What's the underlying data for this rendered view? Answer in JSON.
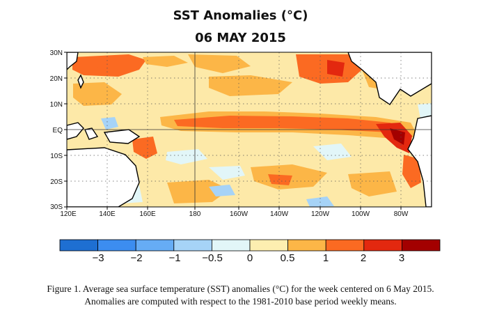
{
  "map": {
    "title": "SST Anomalies (°C)",
    "date": "06 MAY 2015",
    "lat_labels": [
      "30N",
      "20N",
      "10N",
      "EQ",
      "10S",
      "20S",
      "30S"
    ],
    "lon_labels": [
      "120E",
      "140E",
      "160E",
      "180",
      "160W",
      "140W",
      "120W",
      "100W",
      "80W"
    ],
    "colorbar": {
      "colors": [
        "#1e6fd2",
        "#3c8df0",
        "#66acf5",
        "#a6d3f7",
        "#e2f6f8",
        "#fdeeb0",
        "#fcb647",
        "#fb6a22",
        "#e3280f",
        "#a30000"
      ],
      "tick_labels": [
        "−3",
        "−2",
        "−1",
        "−0.5",
        "0",
        "0.5",
        "1",
        "2",
        "3"
      ]
    },
    "colors": {
      "land": "#ffffff",
      "coast": "#000000",
      "ocean_base": "#fde9a8"
    }
  },
  "caption": {
    "line1": "Figure 1. Average sea surface temperature (SST) anomalies (°C) for the week centered on 6 May 2015.",
    "line2": "Anomalies are computed with respect to the 1981-2010 base period weekly means."
  }
}
